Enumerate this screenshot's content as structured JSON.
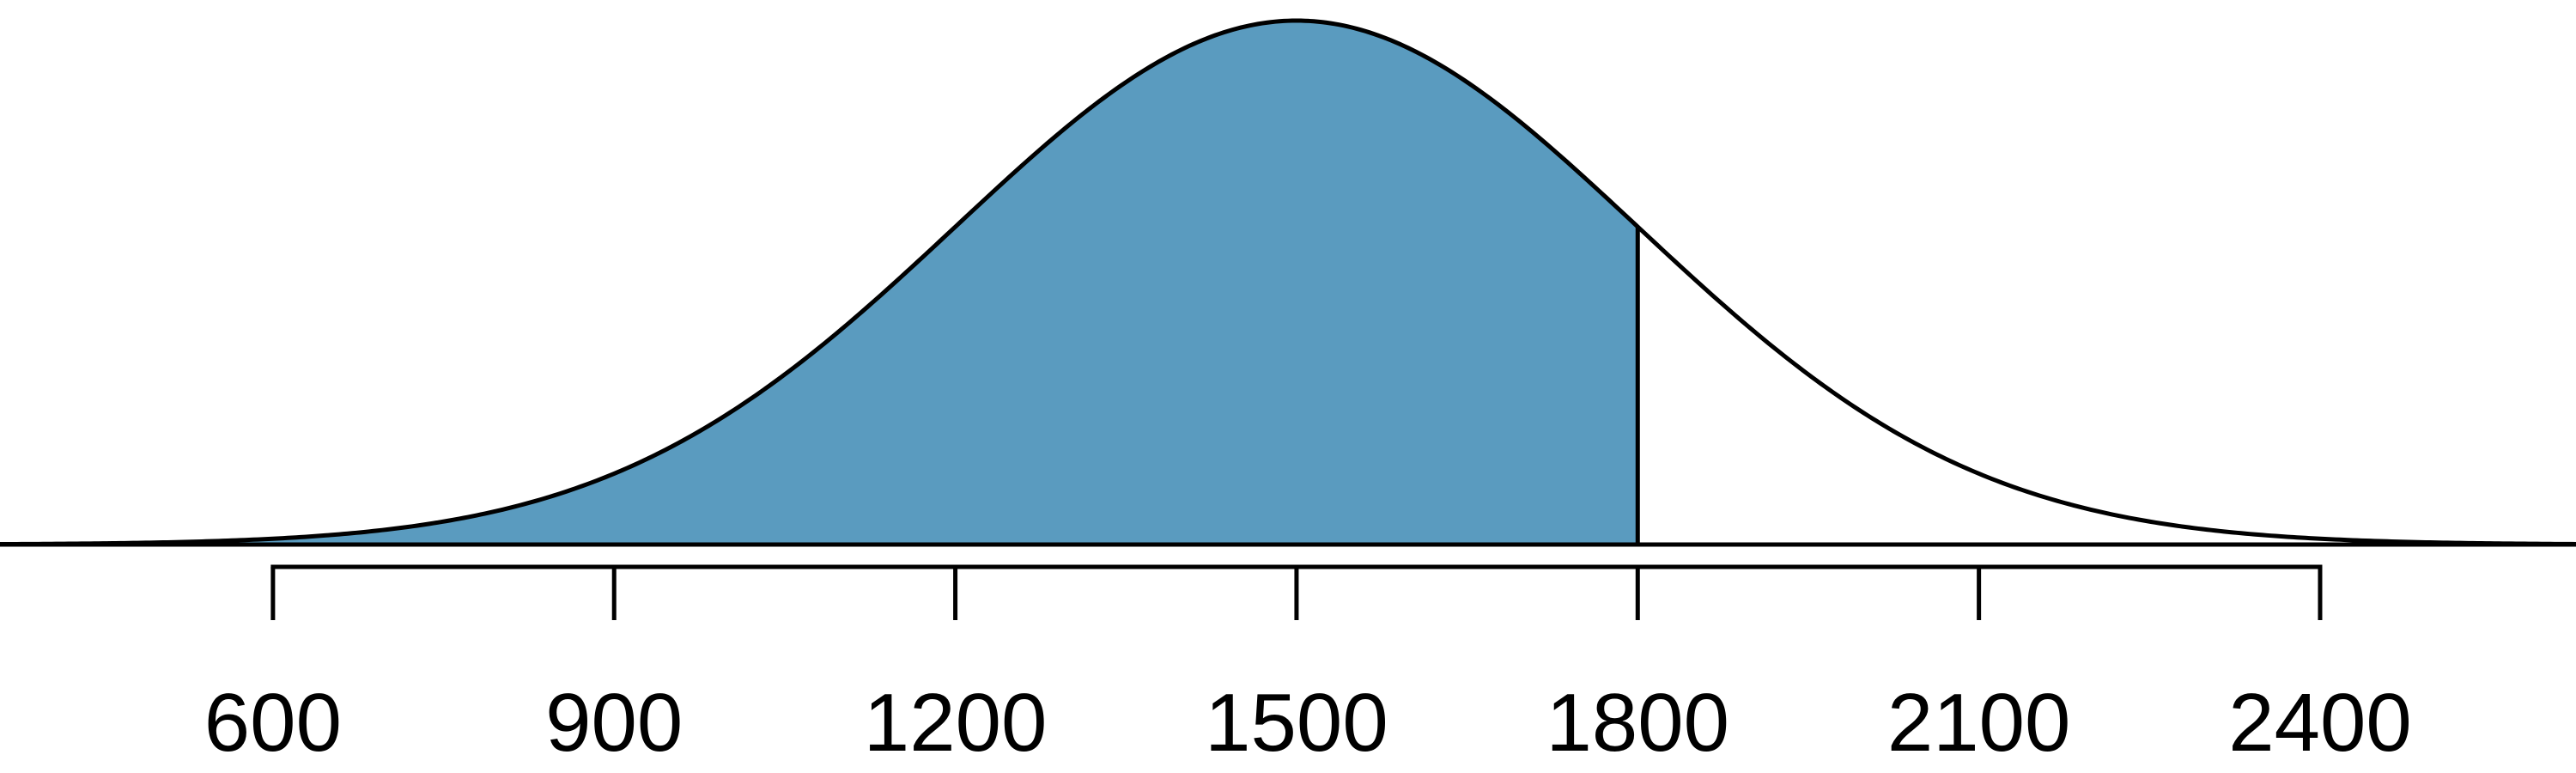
{
  "chart_data": {
    "type": "area",
    "title": "",
    "xlabel": "",
    "ylabel": "",
    "distribution": "normal",
    "mean": 1500,
    "sd": 300,
    "shaded_region": {
      "from": null,
      "to": 1800
    },
    "shade_color": "#5A9BBF",
    "xlim": [
      360,
      2625
    ],
    "axis_range": [
      600,
      2400
    ],
    "ticks": [
      600,
      900,
      1200,
      1500,
      1800,
      2100,
      2400
    ],
    "tick_labels": [
      "600",
      "900",
      "1200",
      "1500",
      "1800",
      "2100",
      "2400"
    ],
    "grid": false
  }
}
